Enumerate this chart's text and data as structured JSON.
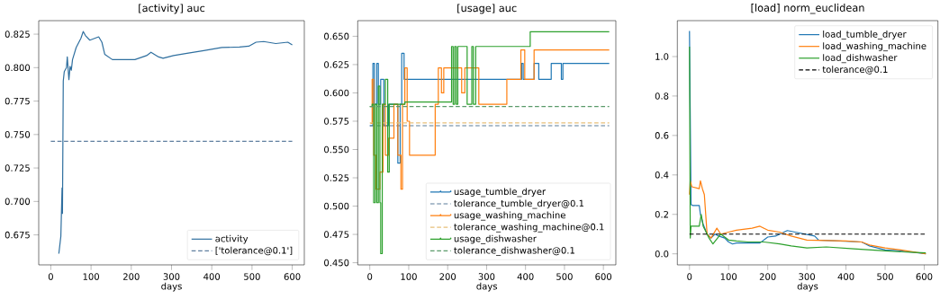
{
  "chart_data": [
    {
      "type": "line",
      "title": "[activity] auc",
      "xlabel": "days",
      "xlim": [
        -30,
        630
      ],
      "ylim": [
        0.6526,
        0.8351
      ],
      "legend": "bottom right",
      "xticks": [
        0,
        100,
        200,
        300,
        400,
        500,
        600
      ],
      "yticks": [
        {
          "value": 0.675,
          "label": "0.675"
        },
        {
          "value": 0.7,
          "label": "0.700"
        },
        {
          "value": 0.725,
          "label": "0.725"
        },
        {
          "value": 0.75,
          "label": "0.750"
        },
        {
          "value": 0.775,
          "label": "0.775"
        },
        {
          "value": 0.8,
          "label": "0.800"
        },
        {
          "value": 0.825,
          "label": "0.825"
        }
      ],
      "series": [
        {
          "name": "activity",
          "color": "#2f6f9f",
          "x": [
            20,
            25,
            28,
            29,
            31,
            33.5,
            39,
            41,
            45,
            48,
            51,
            54,
            63,
            75,
            80.5,
            86,
            97,
            119,
            127,
            134,
            153,
            171,
            209,
            238,
            249,
            268,
            279,
            305,
            335,
            380,
            425,
            469,
            492,
            510,
            529,
            559,
            589,
            600
          ],
          "values": [
            0.661,
            0.674,
            0.71,
            0.691,
            0.79,
            0.797,
            0.8,
            0.808,
            0.791,
            0.801,
            0.798,
            0.806,
            0.815,
            0.822,
            0.827,
            0.824,
            0.8205,
            0.823,
            0.819,
            0.81,
            0.806,
            0.806,
            0.806,
            0.809,
            0.8115,
            0.808,
            0.807,
            0.809,
            0.8105,
            0.8127,
            0.815,
            0.8154,
            0.816,
            0.819,
            0.8195,
            0.818,
            0.819,
            0.817
          ]
        },
        {
          "name": "['tolerance@0.1']",
          "color": "#5f7f9f",
          "line_style": "dashed",
          "x": [
            0,
            600
          ],
          "values": [
            0.7449,
            0.7449
          ]
        }
      ]
    },
    {
      "type": "step",
      "title": "[usage] auc",
      "xlabel": "days",
      "xlim": [
        -31,
        632
      ],
      "ylim": [
        0.4481,
        0.6638
      ],
      "legend": "bottom right",
      "xticks": [
        0,
        100,
        200,
        300,
        400,
        500,
        600
      ],
      "yticks": [
        {
          "value": 0.45,
          "label": "0.450"
        },
        {
          "value": 0.475,
          "label": "0.475"
        },
        {
          "value": 0.5,
          "label": "0.500"
        },
        {
          "value": 0.525,
          "label": "0.525"
        },
        {
          "value": 0.55,
          "label": "0.550"
        },
        {
          "value": 0.575,
          "label": "0.575"
        },
        {
          "value": 0.6,
          "label": "0.600"
        },
        {
          "value": 0.625,
          "label": "0.625"
        },
        {
          "value": 0.65,
          "label": "0.650"
        }
      ],
      "series": [
        {
          "name": "usage_tumble_dryer",
          "color": "#1f77b4",
          "x": [
            0,
            8,
            12,
            18,
            22,
            28,
            36,
            48,
            72,
            78,
            82,
            88,
            390,
            394,
            422,
            434,
            466,
            492,
            496,
            615
          ],
          "values": [
            0.571,
            0.626,
            0.59,
            0.626,
            0.59,
            0.612,
            0.571,
            0.59,
            0.538,
            0.59,
            0.635,
            0.612,
            0.626,
            0.612,
            0.626,
            0.612,
            0.626,
            0.612,
            0.626,
            0.626
          ]
        },
        {
          "name": "tolerance_tumble_dryer@0.1",
          "type": "line",
          "line_style": "dashed",
          "color": "#5b7c99",
          "x": [
            0,
            615
          ],
          "values": [
            0.571,
            0.571
          ]
        },
        {
          "name": "usage_washing_machine",
          "color": "#ff7f0e",
          "x": [
            2,
            6,
            10,
            16,
            26,
            34,
            40,
            48,
            62,
            72,
            80,
            84,
            90,
            96,
            102,
            168,
            176,
            184,
            190,
            196,
            236,
            244,
            280,
            352,
            388,
            398,
            422,
            615
          ],
          "values": [
            0.573,
            0.612,
            0.545,
            0.515,
            0.53,
            0.59,
            0.545,
            0.56,
            0.59,
            0.545,
            0.515,
            0.59,
            0.622,
            0.575,
            0.545,
            0.59,
            0.622,
            0.6,
            0.622,
            0.622,
            0.6,
            0.622,
            0.59,
            0.612,
            0.638,
            0.612,
            0.638,
            0.638
          ]
        },
        {
          "name": "tolerance_washing_machine@0.1",
          "type": "line",
          "line_style": "dashed",
          "color": "#e8c07a",
          "x": [
            0,
            615
          ],
          "values": [
            0.5735,
            0.5735
          ]
        },
        {
          "name": "usage_dishwasher",
          "color": "#2ca02c",
          "x": [
            0,
            6,
            10,
            14,
            18,
            22,
            26,
            28,
            32,
            40,
            46,
            50,
            60,
            90,
            120,
            210,
            214,
            218,
            222,
            226,
            240,
            250,
            262,
            266,
            272,
            412,
            615
          ],
          "values": [
            0.588,
            0.59,
            0.503,
            0.59,
            0.503,
            0.606,
            0.503,
            0.458,
            0.59,
            0.612,
            0.53,
            0.59,
            0.59,
            0.592,
            0.592,
            0.641,
            0.59,
            0.641,
            0.59,
            0.641,
            0.641,
            0.59,
            0.641,
            0.59,
            0.641,
            0.654,
            0.654
          ]
        },
        {
          "name": "tolerance_dishwasher@0.1",
          "type": "line",
          "line_style": "dashed",
          "color": "#5a9a6a",
          "x": [
            0,
            615
          ],
          "values": [
            0.588,
            0.588
          ]
        }
      ]
    },
    {
      "type": "line",
      "title": "[load] norm_euclidean",
      "xlabel": "days",
      "xlim": [
        -31,
        635
      ],
      "ylim": [
        -0.056,
        1.182
      ],
      "legend": "top right",
      "xticks": [
        0,
        100,
        200,
        300,
        400,
        500,
        600
      ],
      "yticks": [
        {
          "value": 0,
          "label": "0.0"
        },
        {
          "value": 0.2,
          "label": "0.2"
        },
        {
          "value": 0.4,
          "label": "0.4"
        },
        {
          "value": 0.6,
          "label": "0.6"
        },
        {
          "value": 0.8,
          "label": "0.8"
        },
        {
          "value": 1.0,
          "label": "1.0"
        }
      ],
      "series": [
        {
          "name": "load_tumble_dryer",
          "color": "#1f77b4",
          "x": [
            0,
            4,
            8,
            25,
            28,
            35,
            45,
            55,
            65,
            75,
            90,
            100,
            110,
            120,
            180,
            200,
            220,
            250,
            270,
            320,
            330,
            440,
            460,
            500,
            540,
            604
          ],
          "values": [
            1.13,
            0.25,
            0.245,
            0.245,
            0.2,
            0.15,
            0.1,
            0.08,
            0.1,
            0.09,
            0.08,
            0.06,
            0.05,
            0.055,
            0.055,
            0.085,
            0.09,
            0.118,
            0.11,
            0.09,
            0.07,
            0.06,
            0.04,
            0.02,
            0.015,
            0.0
          ]
        },
        {
          "name": "load_washing_machine",
          "color": "#ff7f0e",
          "x": [
            0,
            2,
            6,
            25,
            28,
            33,
            38,
            45,
            55,
            70,
            80,
            100,
            120,
            160,
            180,
            200,
            230,
            260,
            300,
            400,
            440,
            460,
            500,
            540,
            604
          ],
          "values": [
            0.3,
            0.37,
            0.34,
            0.33,
            0.37,
            0.33,
            0.3,
            0.1,
            0.08,
            0.13,
            0.1,
            0.11,
            0.12,
            0.13,
            0.14,
            0.12,
            0.11,
            0.09,
            0.07,
            0.065,
            0.06,
            0.045,
            0.03,
            0.02,
            0.0
          ]
        },
        {
          "name": "load_dishwasher",
          "color": "#2ca02c",
          "x": [
            0,
            2,
            4,
            8,
            25,
            30,
            35,
            40,
            50,
            60,
            80,
            100,
            120,
            150,
            190,
            230,
            260,
            300,
            350,
            420,
            460,
            500,
            540,
            604
          ],
          "values": [
            1.05,
            0.08,
            0.14,
            0.14,
            0.14,
            0.2,
            0.14,
            0.12,
            0.08,
            0.05,
            0.1,
            0.07,
            0.065,
            0.06,
            0.06,
            0.05,
            0.04,
            0.03,
            0.035,
            0.025,
            0.02,
            0.015,
            0.01,
            0.005
          ]
        },
        {
          "name": "tolerance@0.1",
          "color": "#000000",
          "line_style": "dashed",
          "x": [
            0,
            604
          ],
          "values": [
            0.1,
            0.1
          ]
        }
      ]
    }
  ]
}
